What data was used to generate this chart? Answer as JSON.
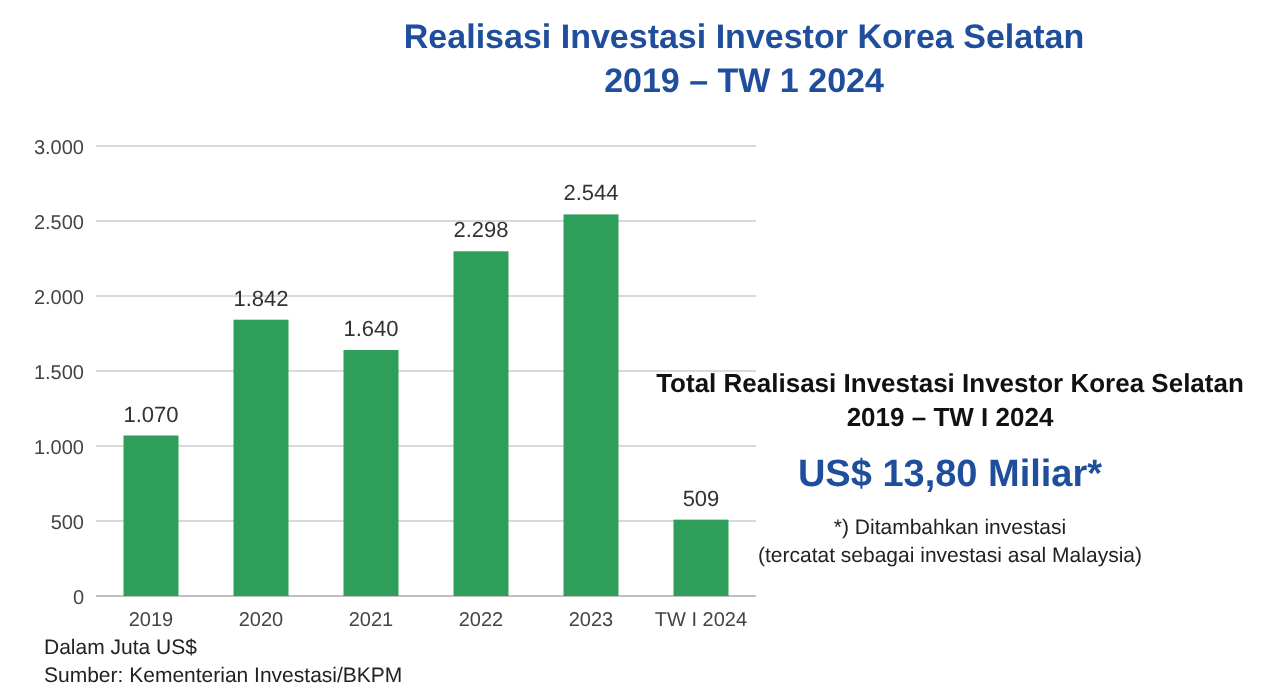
{
  "chart_data": {
    "type": "bar",
    "title": "Realisasi Investasi Investor Korea Selatan\n2019 – TW 1 2024",
    "categories": [
      "2019",
      "2020",
      "2021",
      "2022",
      "2023",
      "TW I 2024"
    ],
    "values": [
      1070,
      1842,
      1640,
      2298,
      2544,
      509
    ],
    "value_labels": [
      "1.070",
      "1.842",
      "1.640",
      "2.298",
      "2.544",
      "509"
    ],
    "color": "#2f9e5a",
    "ylim": [
      0,
      3000
    ],
    "yticks": [
      0,
      500,
      {
        "value": 1000,
        "label": "1.000"
      },
      {
        "value": 1500,
        "label": "1.500"
      },
      {
        "value": 2000,
        "label": "2.000"
      },
      {
        "value": 2500,
        "label": "2.500"
      },
      {
        "value": 3000,
        "label": "3.000"
      }
    ],
    "grid": "y",
    "annotations": [
      "Total Realisasi Investasi Investor Korea Selatan\n2019 – TW I 2024",
      "US$ 13,80 Miliar*",
      "*) Ditambahkan investasi\n(tercatat sebagai investasi asal Malaysia)",
      "Dalam Juta US$",
      "Sumber: Kementerian Investasi/BKPM"
    ]
  }
}
